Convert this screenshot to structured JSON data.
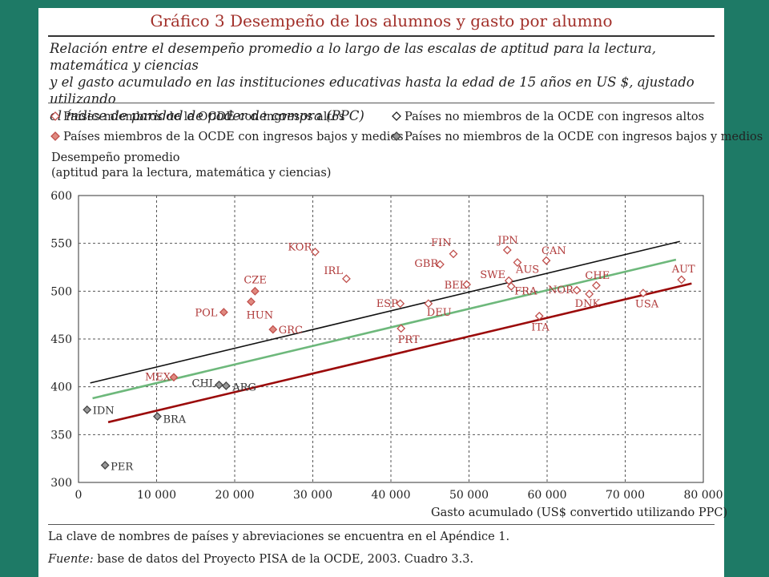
{
  "title": "Gráfico 3 Desempeño de los alumnos y gasto por alumno",
  "subtitle": [
    "Relación entre el desempeño promedio a lo largo de las escalas de aptitud para la lectura, matemática y ciencias",
    "y el gasto acumulado en las instituciones educativas hasta la edad de 15 años en US $, ajustado utilizando",
    "el índice de paridad de poder de compra (PPC)"
  ],
  "legend": {
    "oecd_high": "Países miembros de la OCDE con ingresos altos",
    "nonoecd_high": "Países no miembros de la OCDE con ingresos altos",
    "oecd_lowmid": "Países miembros de la OCDE con ingresos bajos y medios",
    "nonoecd_lowmid": "Países no miembros de la OCDE con ingresos bajos y medios"
  },
  "ylabel": [
    "Desempeño promedio",
    "(aptitud para la lectura, matemática y ciencias)"
  ],
  "xlabel": "Gasto acumulado (US$ convertido utilizando PPC)",
  "note": "La clave de nombres de países y abreviaciones se encuentra en el Apéndice 1.",
  "source_label": "Fuente:",
  "source_text": " base de datos del Proyecto PISA de la OCDE, 2003. Cuadro 3.3.",
  "colors": {
    "background": "#1e7a66",
    "title": "#a2302a",
    "oecd_marker": "#c0504d",
    "oecd_label": "#b03a3a",
    "nonoecd_marker": "#555555",
    "black_line": "#111111",
    "green_line": "#6db87b",
    "red_line": "#9b0a0a"
  },
  "chart_data": {
    "type": "scatter",
    "xlim": [
      0,
      80000
    ],
    "ylim": [
      300,
      600
    ],
    "xticks": [
      0,
      10000,
      20000,
      30000,
      40000,
      50000,
      60000,
      70000,
      80000
    ],
    "xtick_labels": [
      "0",
      "10 000",
      "20 000",
      "30 000",
      "40 000",
      "50 000",
      "60 000",
      "70 000",
      "80 000"
    ],
    "yticks": [
      300,
      350,
      400,
      450,
      500,
      550,
      600
    ],
    "ytick_labels": [
      "300",
      "350",
      "400",
      "450",
      "500",
      "550",
      "600"
    ],
    "grid": true,
    "legend_position": "top",
    "points": [
      {
        "label": "KOR",
        "x": 30300,
        "y": 541,
        "group": "oecd_high"
      },
      {
        "label": "IRL",
        "x": 34300,
        "y": 513,
        "group": "oecd_high"
      },
      {
        "label": "FIN",
        "x": 48000,
        "y": 539,
        "group": "oecd_high"
      },
      {
        "label": "GBR",
        "x": 46300,
        "y": 528,
        "group": "oecd_high"
      },
      {
        "label": "BEL",
        "x": 49700,
        "y": 507,
        "group": "oecd_high"
      },
      {
        "label": "ESP",
        "x": 41200,
        "y": 487,
        "group": "oecd_high"
      },
      {
        "label": "DEU",
        "x": 44800,
        "y": 487,
        "group": "oecd_high"
      },
      {
        "label": "PRT",
        "x": 41300,
        "y": 461,
        "group": "oecd_high"
      },
      {
        "label": "JPN",
        "x": 54900,
        "y": 543,
        "group": "oecd_high"
      },
      {
        "label": "AUS",
        "x": 56200,
        "y": 530,
        "group": "oecd_high"
      },
      {
        "label": "SWE",
        "x": 55100,
        "y": 511,
        "group": "oecd_high"
      },
      {
        "label": "FRA",
        "x": 55400,
        "y": 505,
        "group": "oecd_high"
      },
      {
        "label": "CAN",
        "x": 59900,
        "y": 532,
        "group": "oecd_high"
      },
      {
        "label": "ITA",
        "x": 59000,
        "y": 474,
        "group": "oecd_high"
      },
      {
        "label": "NOR",
        "x": 63800,
        "y": 501,
        "group": "oecd_high"
      },
      {
        "label": "CHE",
        "x": 66300,
        "y": 506,
        "group": "oecd_high"
      },
      {
        "label": "DNK",
        "x": 65400,
        "y": 497,
        "group": "oecd_high"
      },
      {
        "label": "USA",
        "x": 72300,
        "y": 498,
        "group": "oecd_high"
      },
      {
        "label": "AUT",
        "x": 77200,
        "y": 512,
        "group": "oecd_high"
      },
      {
        "label": "CZE",
        "x": 22600,
        "y": 500,
        "group": "oecd_lowmid"
      },
      {
        "label": "HUN",
        "x": 22100,
        "y": 489,
        "group": "oecd_lowmid"
      },
      {
        "label": "POL",
        "x": 18600,
        "y": 478,
        "group": "oecd_lowmid"
      },
      {
        "label": "GRC",
        "x": 24900,
        "y": 460,
        "group": "oecd_lowmid"
      },
      {
        "label": "MEX",
        "x": 12200,
        "y": 410,
        "group": "oecd_lowmid"
      },
      {
        "label": "CHL",
        "x": 18000,
        "y": 402,
        "group": "nonoecd_lowmid"
      },
      {
        "label": "ARG",
        "x": 18900,
        "y": 401,
        "group": "nonoecd_lowmid"
      },
      {
        "label": "IDN",
        "x": 1100,
        "y": 376,
        "group": "nonoecd_lowmid"
      },
      {
        "label": "BRA",
        "x": 10100,
        "y": 369,
        "group": "nonoecd_lowmid"
      },
      {
        "label": "PER",
        "x": 3400,
        "y": 318,
        "group": "nonoecd_lowmid"
      }
    ],
    "trend_lines": [
      {
        "color": "#111111",
        "x": [
          1500,
          77000
        ],
        "y": [
          404,
          552
        ]
      },
      {
        "color": "#6db87b",
        "x": [
          1800,
          76500
        ],
        "y": [
          388,
          533
        ]
      },
      {
        "color": "#9b0a0a",
        "x": [
          3800,
          78500
        ],
        "y": [
          363,
          508
        ]
      }
    ]
  }
}
